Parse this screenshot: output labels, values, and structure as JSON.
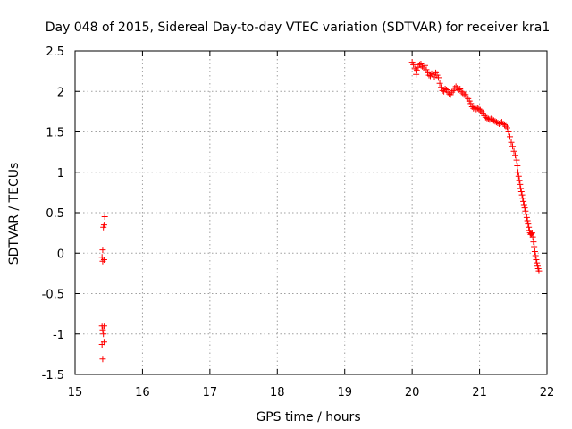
{
  "chart_data": {
    "type": "scatter",
    "title": "Day 048 of 2015, Sidereal Day-to-day VTEC variation (SDTVAR) for receiver kra1",
    "xlabel": "GPS time / hours",
    "ylabel": "SDTVAR / TECUs",
    "xlim": [
      15,
      22
    ],
    "ylim": [
      -1.5,
      2.5
    ],
    "xticks": [
      "15",
      "16",
      "17",
      "18",
      "19",
      "20",
      "21",
      "22"
    ],
    "yticks": [
      "-1.5",
      "-1",
      "-0.5",
      "0",
      "0.5",
      "1",
      "1.5",
      "2",
      "2.5"
    ],
    "xtick_values": [
      15,
      16,
      17,
      18,
      19,
      20,
      21,
      22
    ],
    "ytick_values": [
      -1.5,
      -1,
      -0.5,
      0,
      0.5,
      1,
      1.5,
      2,
      2.5
    ],
    "grid": true,
    "marker": "+",
    "series": [
      {
        "name": "kra1",
        "color": "#ff0000",
        "points": [
          [
            15.41,
            -1.31
          ],
          [
            15.4,
            -1.13
          ],
          [
            15.43,
            -1.1
          ],
          [
            15.42,
            -1.0
          ],
          [
            15.41,
            -0.95
          ],
          [
            15.4,
            -0.9
          ],
          [
            15.43,
            -0.9
          ],
          [
            15.41,
            -0.1
          ],
          [
            15.43,
            -0.08
          ],
          [
            15.4,
            -0.05
          ],
          [
            15.41,
            0.04
          ],
          [
            15.42,
            0.32
          ],
          [
            15.43,
            0.35
          ],
          [
            15.44,
            0.45
          ],
          [
            20.0,
            2.36
          ],
          [
            20.02,
            2.33
          ],
          [
            20.04,
            2.28
          ],
          [
            20.06,
            2.21
          ],
          [
            20.07,
            2.26
          ],
          [
            20.09,
            2.3
          ],
          [
            20.11,
            2.33
          ],
          [
            20.13,
            2.34
          ],
          [
            20.15,
            2.31
          ],
          [
            20.17,
            2.29
          ],
          [
            20.19,
            2.32
          ],
          [
            20.21,
            2.27
          ],
          [
            20.23,
            2.23
          ],
          [
            20.25,
            2.2
          ],
          [
            20.27,
            2.19
          ],
          [
            20.29,
            2.22
          ],
          [
            20.31,
            2.21
          ],
          [
            20.33,
            2.18
          ],
          [
            20.35,
            2.23
          ],
          [
            20.37,
            2.2
          ],
          [
            20.39,
            2.17
          ],
          [
            20.41,
            2.1
          ],
          [
            20.43,
            2.05
          ],
          [
            20.45,
            2.01
          ],
          [
            20.47,
            2.0
          ],
          [
            20.49,
            2.03
          ],
          [
            20.51,
            2.02
          ],
          [
            20.53,
            1.99
          ],
          [
            20.55,
            1.97
          ],
          [
            20.57,
            1.96
          ],
          [
            20.59,
            1.99
          ],
          [
            20.61,
            2.01
          ],
          [
            20.63,
            2.04
          ],
          [
            20.65,
            2.06
          ],
          [
            20.67,
            2.04
          ],
          [
            20.69,
            2.02
          ],
          [
            20.71,
            2.03
          ],
          [
            20.73,
            2.0
          ],
          [
            20.75,
            1.98
          ],
          [
            20.77,
            1.96
          ],
          [
            20.79,
            1.96
          ],
          [
            20.81,
            1.93
          ],
          [
            20.83,
            1.91
          ],
          [
            20.85,
            1.88
          ],
          [
            20.87,
            1.85
          ],
          [
            20.89,
            1.81
          ],
          [
            20.91,
            1.79
          ],
          [
            20.93,
            1.8
          ],
          [
            20.95,
            1.78
          ],
          [
            20.97,
            1.79
          ],
          [
            20.99,
            1.78
          ],
          [
            21.01,
            1.77
          ],
          [
            21.03,
            1.75
          ],
          [
            21.05,
            1.73
          ],
          [
            21.07,
            1.7
          ],
          [
            21.09,
            1.68
          ],
          [
            21.11,
            1.67
          ],
          [
            21.13,
            1.66
          ],
          [
            21.15,
            1.65
          ],
          [
            21.17,
            1.66
          ],
          [
            21.19,
            1.65
          ],
          [
            21.21,
            1.64
          ],
          [
            21.23,
            1.63
          ],
          [
            21.25,
            1.62
          ],
          [
            21.27,
            1.61
          ],
          [
            21.29,
            1.6
          ],
          [
            21.31,
            1.61
          ],
          [
            21.33,
            1.62
          ],
          [
            21.35,
            1.6
          ],
          [
            21.37,
            1.59
          ],
          [
            21.39,
            1.57
          ],
          [
            21.41,
            1.55
          ],
          [
            21.43,
            1.5
          ],
          [
            21.45,
            1.44
          ],
          [
            21.47,
            1.37
          ],
          [
            21.49,
            1.32
          ],
          [
            21.51,
            1.26
          ],
          [
            21.53,
            1.21
          ],
          [
            21.55,
            1.15
          ],
          [
            21.56,
            1.08
          ],
          [
            21.57,
            1.0
          ],
          [
            21.58,
            0.95
          ],
          [
            21.59,
            0.9
          ],
          [
            21.6,
            0.85
          ],
          [
            21.61,
            0.8
          ],
          [
            21.62,
            0.76
          ],
          [
            21.63,
            0.72
          ],
          [
            21.64,
            0.68
          ],
          [
            21.65,
            0.64
          ],
          [
            21.66,
            0.6
          ],
          [
            21.67,
            0.56
          ],
          [
            21.68,
            0.52
          ],
          [
            21.69,
            0.48
          ],
          [
            21.7,
            0.44
          ],
          [
            21.71,
            0.4
          ],
          [
            21.72,
            0.36
          ],
          [
            21.73,
            0.32
          ],
          [
            21.74,
            0.28
          ],
          [
            21.75,
            0.25
          ],
          [
            21.76,
            0.23
          ],
          [
            21.77,
            0.24
          ],
          [
            21.78,
            0.25
          ],
          [
            21.79,
            0.2
          ],
          [
            21.8,
            0.14
          ],
          [
            21.81,
            0.08
          ],
          [
            21.82,
            0.02
          ],
          [
            21.83,
            -0.03
          ],
          [
            21.84,
            -0.08
          ],
          [
            21.85,
            -0.12
          ],
          [
            21.86,
            -0.16
          ],
          [
            21.87,
            -0.19
          ],
          [
            21.88,
            -0.22
          ]
        ]
      }
    ]
  }
}
